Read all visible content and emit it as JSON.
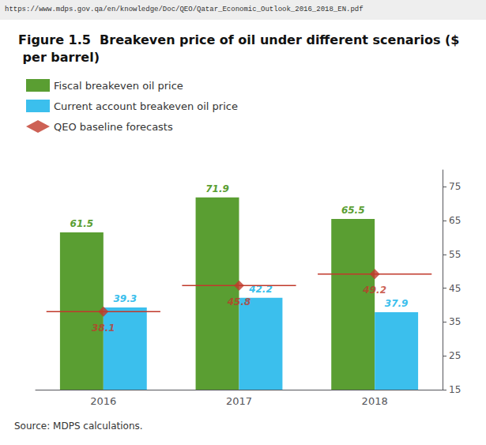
{
  "chart_data": {
    "type": "bar",
    "title": "Figure 1.5  Breakeven price of oil under different scenarios ($ per barrel)",
    "annotations": [
      "https://www.mdps.gov.qa/en/knowledge/Doc/QEO/Qatar_Economic_Outlook_2016_2018_EN.pdf",
      "Source: MDPS calculations."
    ],
    "categories": [
      "2016",
      "2017",
      "2018"
    ],
    "series": [
      {
        "name": "Fiscal breakeven oil price",
        "type": "bar",
        "color": "#5a9e32",
        "values": [
          61.5,
          71.9,
          65.5
        ]
      },
      {
        "name": "Current account breakeven oil price",
        "type": "bar",
        "color": "#3bbfed",
        "values": [
          39.3,
          42.2,
          37.9
        ]
      },
      {
        "name": "QEO baseline forecasts",
        "type": "scatter",
        "marker": "diamond",
        "color": "#c0392b",
        "values": [
          38.1,
          45.8,
          49.2
        ]
      }
    ],
    "ylim": [
      15,
      80
    ],
    "yticks": [
      15,
      25,
      35,
      45,
      55,
      65,
      75
    ],
    "grid": false,
    "legend": "top-left",
    "data_labels": true
  }
}
